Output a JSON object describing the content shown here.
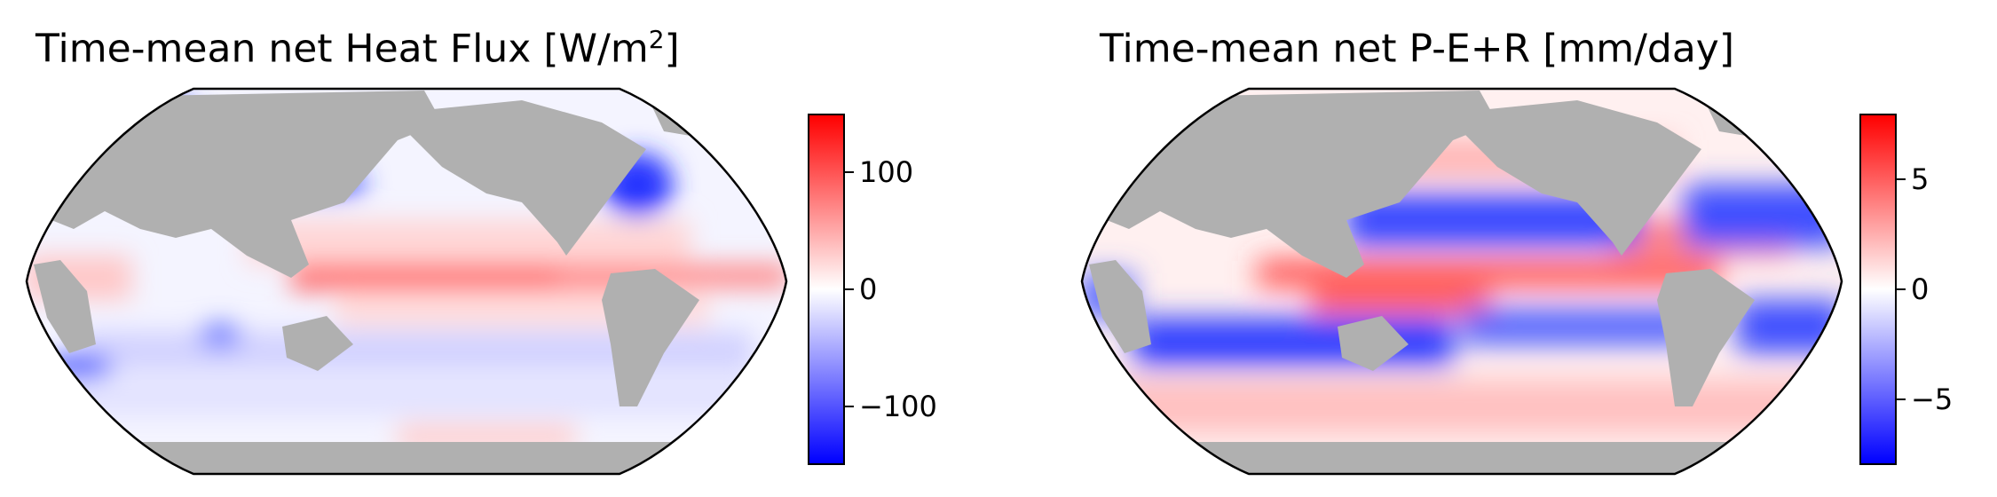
{
  "colors": {
    "land": "#b0b0b0",
    "cmap_low": "#0000ff",
    "cmap_mid": "#ffffff",
    "cmap_high": "#ff0000",
    "frame": "#000000"
  },
  "chart_data": [
    {
      "type": "heatmap",
      "title_main": "Time-mean net Heat Flux [W/m",
      "title_sup": "2",
      "title_end": "]",
      "projection": "Robinson",
      "colormap": "bwr",
      "clim": [
        -150,
        150
      ],
      "colorbar_ticks": [
        {
          "value": 100,
          "label": "100"
        },
        {
          "value": 0,
          "label": "0"
        },
        {
          "value": -100,
          "label": "−100"
        }
      ]
    },
    {
      "type": "heatmap",
      "title_main": "Time-mean net P-E+R [mm/day]",
      "title_sup": "",
      "title_end": "",
      "projection": "Robinson",
      "colormap": "bwr",
      "clim": [
        -8,
        8
      ],
      "colorbar_ticks": [
        {
          "value": 5,
          "label": "5"
        },
        {
          "value": 0,
          "label": "0"
        },
        {
          "value": -5,
          "label": "−5"
        }
      ]
    }
  ]
}
